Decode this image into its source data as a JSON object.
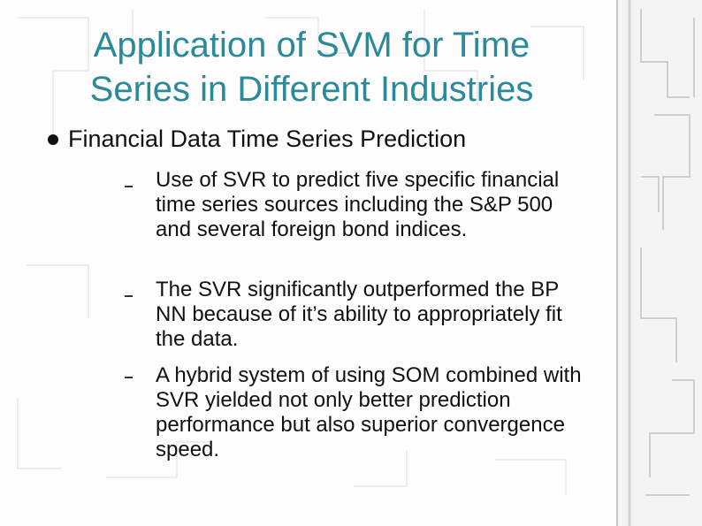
{
  "header": {
    "title": [
      "Application of SVM for Time",
      "Series in Different Industries"
    ]
  },
  "bullets": [
    {
      "text": "Financial Data Time Series Prediction",
      "subitems": [
        "Use of SVR to predict five specific financial time series sources including the S&P 500 and several foreign bond indices.",
        "The SVR significantly outperformed the BP NN because of it’s ability to appropriately fit the data.",
        "A hybrid system of using SOM combined with SVR yielded not only better prediction performance but also superior convergence speed."
      ]
    }
  ]
}
